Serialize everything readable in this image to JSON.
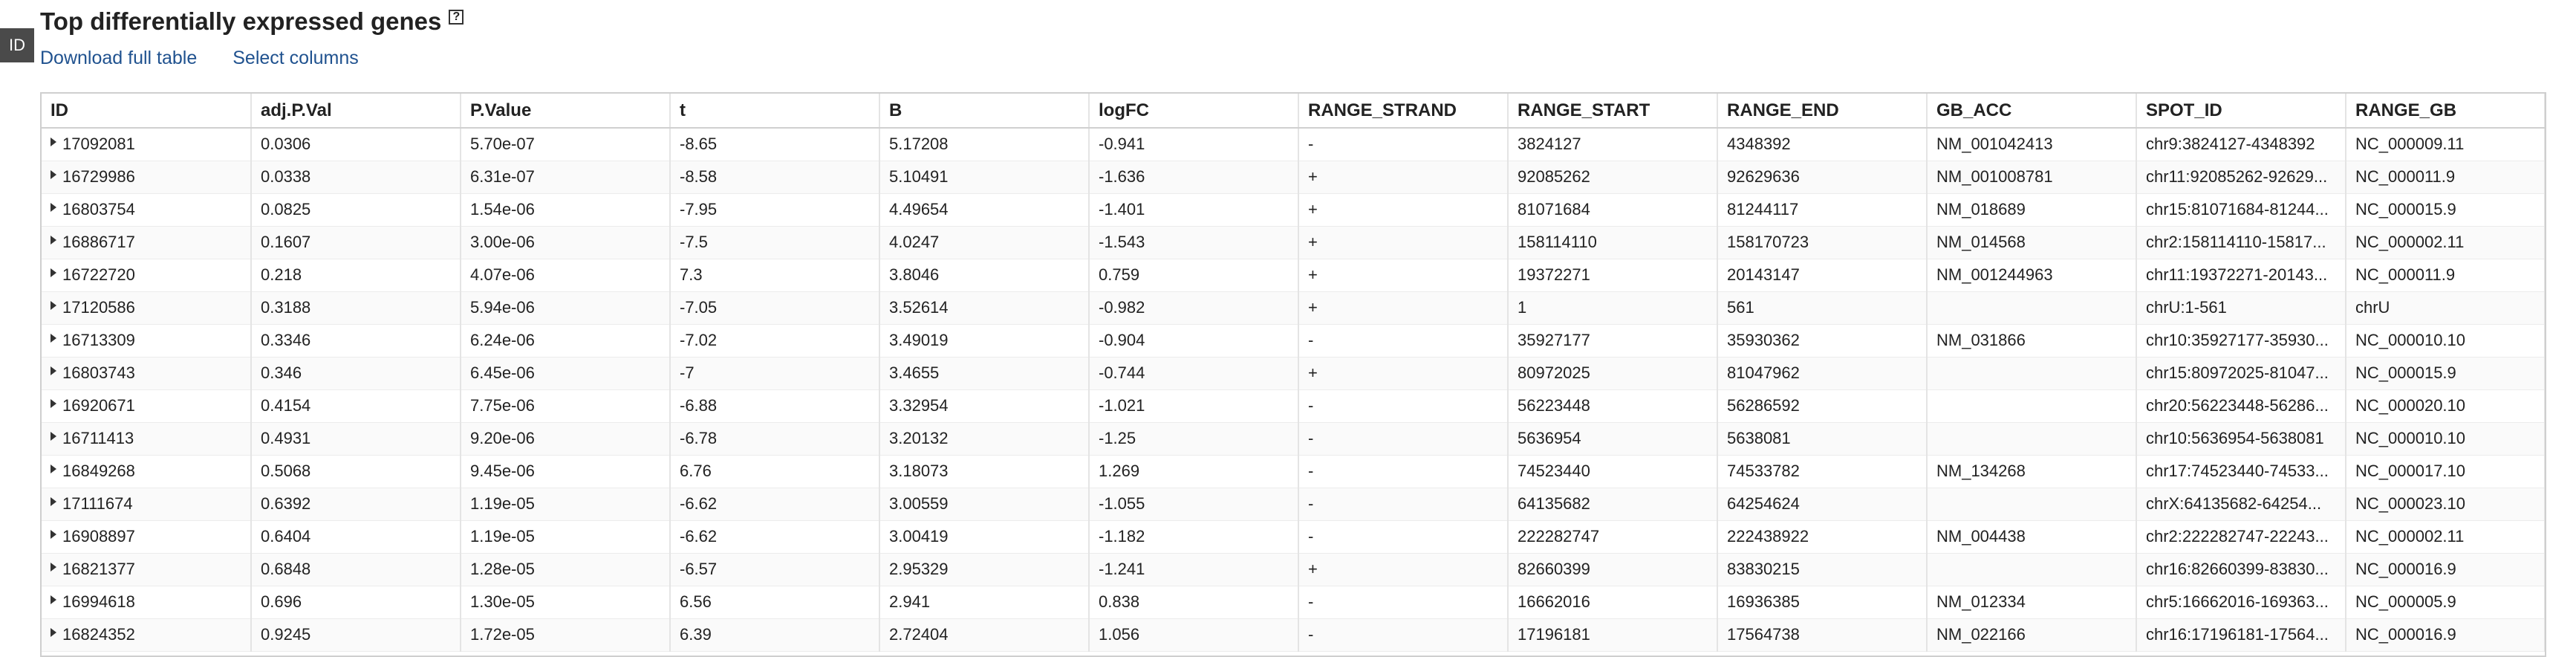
{
  "badge": "ID",
  "title": "Top differentially expressed genes",
  "help_glyph": "?",
  "links": {
    "download": "Download full table",
    "select_columns": "Select columns"
  },
  "columns": [
    "ID",
    "adj.P.Val",
    "P.Value",
    "t",
    "B",
    "logFC",
    "RANGE_STRAND",
    "RANGE_START",
    "RANGE_END",
    "GB_ACC",
    "SPOT_ID",
    "RANGE_GB"
  ],
  "rows": [
    [
      "17092081",
      "0.0306",
      "5.70e-07",
      "-8.65",
      "5.17208",
      "-0.941",
      "-",
      "3824127",
      "4348392",
      "NM_001042413",
      "chr9:3824127-4348392",
      "NC_000009.11"
    ],
    [
      "16729986",
      "0.0338",
      "6.31e-07",
      "-8.58",
      "5.10491",
      "-1.636",
      "+",
      "92085262",
      "92629636",
      "NM_001008781",
      "chr11:92085262-92629...",
      "NC_000011.9"
    ],
    [
      "16803754",
      "0.0825",
      "1.54e-06",
      "-7.95",
      "4.49654",
      "-1.401",
      "+",
      "81071684",
      "81244117",
      "NM_018689",
      "chr15:81071684-81244...",
      "NC_000015.9"
    ],
    [
      "16886717",
      "0.1607",
      "3.00e-06",
      "-7.5",
      "4.0247",
      "-1.543",
      "+",
      "158114110",
      "158170723",
      "NM_014568",
      "chr2:158114110-15817...",
      "NC_000002.11"
    ],
    [
      "16722720",
      "0.218",
      "4.07e-06",
      "7.3",
      "3.8046",
      "0.759",
      "+",
      "19372271",
      "20143147",
      "NM_001244963",
      "chr11:19372271-20143...",
      "NC_000011.9"
    ],
    [
      "17120586",
      "0.3188",
      "5.94e-06",
      "-7.05",
      "3.52614",
      "-0.982",
      "+",
      "1",
      "561",
      "",
      "chrU:1-561",
      "chrU"
    ],
    [
      "16713309",
      "0.3346",
      "6.24e-06",
      "-7.02",
      "3.49019",
      "-0.904",
      "-",
      "35927177",
      "35930362",
      "NM_031866",
      "chr10:35927177-35930...",
      "NC_000010.10"
    ],
    [
      "16803743",
      "0.346",
      "6.45e-06",
      "-7",
      "3.4655",
      "-0.744",
      "+",
      "80972025",
      "81047962",
      "",
      "chr15:80972025-81047...",
      "NC_000015.9"
    ],
    [
      "16920671",
      "0.4154",
      "7.75e-06",
      "-6.88",
      "3.32954",
      "-1.021",
      "-",
      "56223448",
      "56286592",
      "",
      "chr20:56223448-56286...",
      "NC_000020.10"
    ],
    [
      "16711413",
      "0.4931",
      "9.20e-06",
      "-6.78",
      "3.20132",
      "-1.25",
      "-",
      "5636954",
      "5638081",
      "",
      "chr10:5636954-5638081",
      "NC_000010.10"
    ],
    [
      "16849268",
      "0.5068",
      "9.45e-06",
      "6.76",
      "3.18073",
      "1.269",
      "-",
      "74523440",
      "74533782",
      "NM_134268",
      "chr17:74523440-74533...",
      "NC_000017.10"
    ],
    [
      "17111674",
      "0.6392",
      "1.19e-05",
      "-6.62",
      "3.00559",
      "-1.055",
      "-",
      "64135682",
      "64254624",
      "",
      "chrX:64135682-64254...",
      "NC_000023.10"
    ],
    [
      "16908897",
      "0.6404",
      "1.19e-05",
      "-6.62",
      "3.00419",
      "-1.182",
      "-",
      "222282747",
      "222438922",
      "NM_004438",
      "chr2:222282747-22243...",
      "NC_000002.11"
    ],
    [
      "16821377",
      "0.6848",
      "1.28e-05",
      "-6.57",
      "2.95329",
      "-1.241",
      "+",
      "82660399",
      "83830215",
      "",
      "chr16:82660399-83830...",
      "NC_000016.9"
    ],
    [
      "16994618",
      "0.696",
      "1.30e-05",
      "6.56",
      "2.941",
      "0.838",
      "-",
      "16662016",
      "16936385",
      "NM_012334",
      "chr5:16662016-169363...",
      "NC_000005.9"
    ],
    [
      "16824352",
      "0.9245",
      "1.72e-05",
      "6.39",
      "2.72404",
      "1.056",
      "-",
      "17196181",
      "17564738",
      "NM_022166",
      "chr16:17196181-17564...",
      "NC_000016.9"
    ]
  ]
}
